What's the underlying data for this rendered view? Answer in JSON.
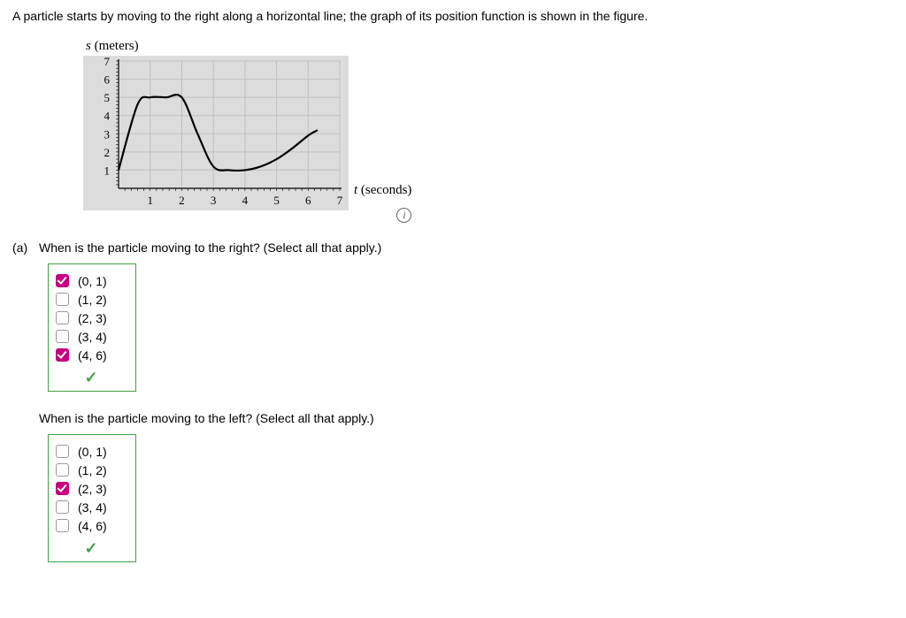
{
  "problem_text": "A particle starts by moving to the right along a horizontal line; the graph of its position function is shown in the figure.",
  "chart": {
    "type": "line",
    "ylabel": "s",
    "ylabel_units": "(meters)",
    "xlabel": "t",
    "xlabel_units": "(seconds)",
    "xlim": [
      0,
      7
    ],
    "ylim": [
      0,
      7
    ],
    "xticks": [
      1,
      2,
      3,
      4,
      5,
      6,
      7
    ],
    "yticks": [
      1,
      2,
      3,
      4,
      5,
      6,
      7
    ],
    "background_color": "#dcdcdc",
    "plot_background": "#dcdcdc",
    "grid_color": "#bfbfbf",
    "axis_color": "#000000",
    "curve_color": "#000000",
    "curve_width": 2.2,
    "tick_fontsize": 13,
    "label_fontsize": 15,
    "points": [
      {
        "x": 0,
        "y": 1
      },
      {
        "x": 0.6,
        "y": 4.6
      },
      {
        "x": 1.0,
        "y": 5.0
      },
      {
        "x": 1.5,
        "y": 5.0
      },
      {
        "x": 2.0,
        "y": 5.0
      },
      {
        "x": 2.5,
        "y": 3.0
      },
      {
        "x": 3.0,
        "y": 1.2
      },
      {
        "x": 3.5,
        "y": 1.0
      },
      {
        "x": 4.0,
        "y": 1.0
      },
      {
        "x": 4.5,
        "y": 1.2
      },
      {
        "x": 5.0,
        "y": 1.6
      },
      {
        "x": 5.5,
        "y": 2.2
      },
      {
        "x": 6.0,
        "y": 2.9
      },
      {
        "x": 6.3,
        "y": 3.2
      }
    ]
  },
  "part_a_letter": "(a)",
  "questions": [
    {
      "prompt": "When is the particle moving to the right? (Select all that apply.)",
      "options": [
        {
          "label": "(0, 1)",
          "checked": true
        },
        {
          "label": "(1, 2)",
          "checked": false
        },
        {
          "label": "(2, 3)",
          "checked": false
        },
        {
          "label": "(3, 4)",
          "checked": false
        },
        {
          "label": "(4, 6)",
          "checked": true
        }
      ],
      "result_correct": true
    },
    {
      "prompt": "When is the particle moving to the left? (Select all that apply.)",
      "options": [
        {
          "label": "(0, 1)",
          "checked": false
        },
        {
          "label": "(1, 2)",
          "checked": false
        },
        {
          "label": "(2, 3)",
          "checked": true
        },
        {
          "label": "(3, 4)",
          "checked": false
        },
        {
          "label": "(4, 6)",
          "checked": false
        }
      ],
      "result_correct": true
    }
  ]
}
